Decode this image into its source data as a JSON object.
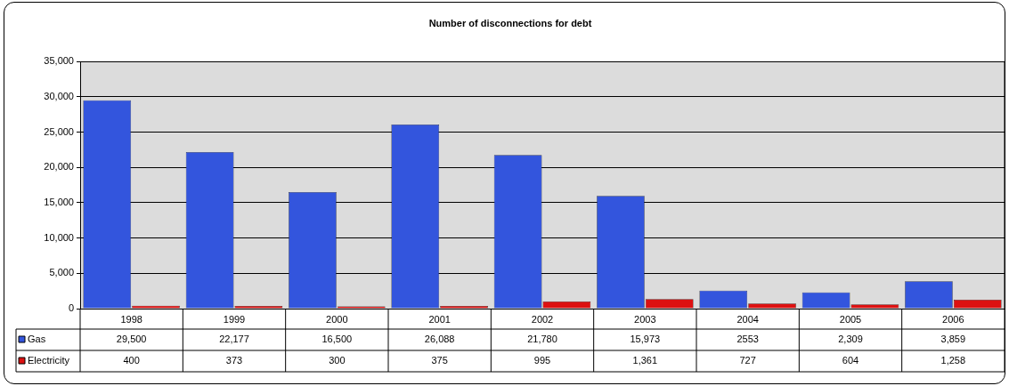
{
  "chart_data": {
    "type": "bar",
    "title": "Number of disconnections for debt",
    "categories": [
      "1998",
      "1999",
      "2000",
      "2001",
      "2002",
      "2003",
      "2004",
      "2005",
      "2006"
    ],
    "series": [
      {
        "name": "Gas",
        "color": "#3355dd",
        "values": [
          29500,
          22177,
          16500,
          26088,
          21780,
          15973,
          2553,
          2309,
          3859
        ],
        "value_labels": [
          "29,500",
          "22,177",
          "16,500",
          "26,088",
          "21,780",
          "15,973",
          "2553",
          "2,309",
          "3,859"
        ]
      },
      {
        "name": "Electricity",
        "color": "#dd1111",
        "values": [
          400,
          373,
          300,
          375,
          995,
          1361,
          727,
          604,
          1258
        ],
        "value_labels": [
          "400",
          "373",
          "300",
          "375",
          "995",
          "1,361",
          "727",
          "604",
          "1,258"
        ]
      }
    ],
    "ylim": [
      0,
      35000
    ],
    "yticks": [
      {
        "value": 0,
        "label": "0"
      },
      {
        "value": 5000,
        "label": "5,000"
      },
      {
        "value": 10000,
        "label": "10,000"
      },
      {
        "value": 15000,
        "label": "15,000"
      },
      {
        "value": 20000,
        "label": "20,000"
      },
      {
        "value": 25000,
        "label": "25,000"
      },
      {
        "value": 30000,
        "label": "30,000"
      },
      {
        "value": 35000,
        "label": "35,000"
      }
    ],
    "grid": "y",
    "legend": "bottom"
  }
}
